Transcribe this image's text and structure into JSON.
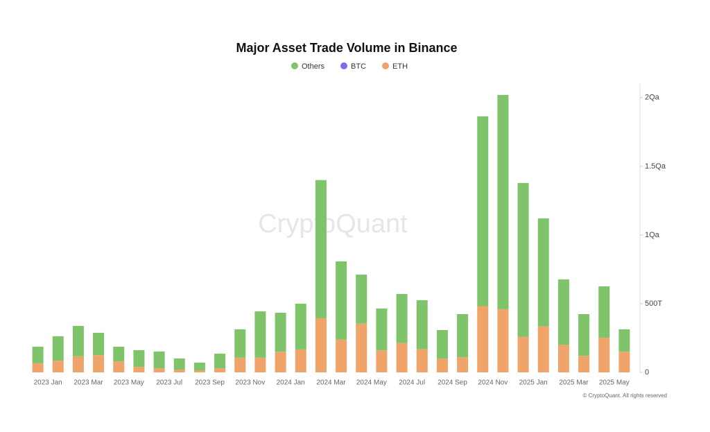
{
  "chart_data": {
    "type": "stacked_bar",
    "title": "Major Asset Trade Volume in Binance",
    "categories": [
      "2023 Jan",
      null,
      "2023 Mar",
      null,
      "2023 May",
      null,
      "2023 Jul",
      null,
      "2023 Sep",
      null,
      "2023 Nov",
      null,
      "2024 Jan",
      null,
      "2024 Mar",
      null,
      "2024 May",
      null,
      "2024 Jul",
      null,
      "2024 Sep",
      null,
      "2024 Nov",
      null,
      "2025 Jan",
      null,
      "2025 Mar",
      null,
      "2025 May",
      null
    ],
    "series": [
      {
        "name": "ETH",
        "color": "#f0a46a",
        "values": [
          66,
          85,
          117,
          125,
          80,
          40,
          30,
          20,
          15,
          30,
          107,
          107,
          150,
          167,
          394,
          240,
          355,
          160,
          213,
          170,
          100,
          110,
          482,
          460,
          260,
          335,
          200,
          120,
          252,
          150
        ]
      },
      {
        "name": "BTC",
        "color": "#7b6cf0",
        "values": [
          null,
          null,
          null,
          null,
          null,
          null,
          null,
          null,
          null,
          null,
          null,
          null,
          null,
          null,
          null,
          null,
          null,
          null,
          null,
          null,
          null,
          null,
          null,
          null,
          null,
          null,
          null,
          null,
          null,
          null
        ]
      },
      {
        "name": "Others",
        "color": "#7fc46a",
        "values": [
          121,
          178,
          221,
          163,
          107,
          122,
          122,
          81,
          56,
          106,
          206,
          337,
          284,
          333,
          1006,
          568,
          357,
          305,
          358,
          355,
          208,
          314,
          1382,
          1560,
          1119,
          786,
          477,
          304,
          374,
          163
        ]
      }
    ],
    "legend_order": [
      "Others",
      "BTC",
      "ETH"
    ],
    "ylim": [
      0,
      2100
    ],
    "yticks": [
      0,
      {
        "value": 500,
        "label": "500T"
      },
      {
        "value": 1000,
        "label": "1Qa"
      },
      {
        "value": 1500,
        "label": "1.5Qa"
      },
      {
        "value": 2000,
        "label": "2Qa"
      }
    ],
    "y_axis_side": "right",
    "watermark": "CryptoQuant",
    "footer": "© CryptoQuant. All rights reserved"
  }
}
